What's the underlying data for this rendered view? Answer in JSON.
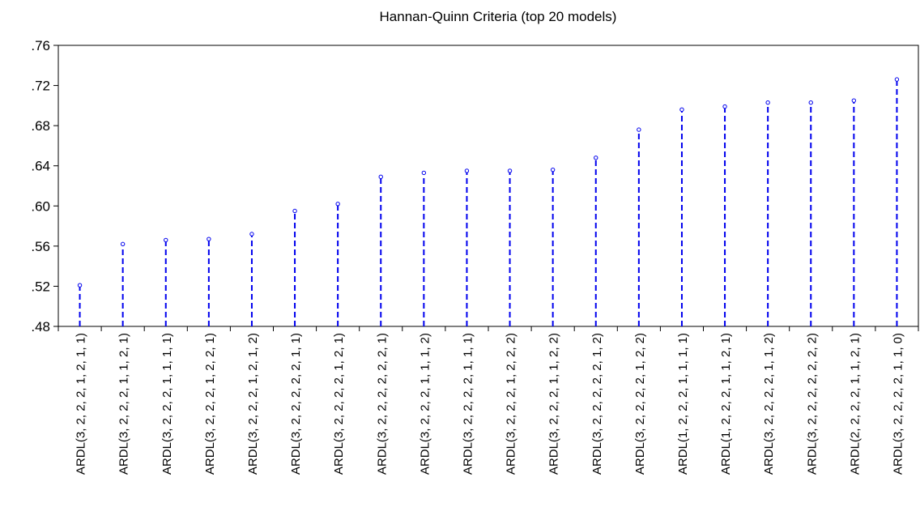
{
  "chart_data": {
    "type": "stem",
    "title": "Hannan-Quinn Criteria (top 20 models)",
    "categories": [
      "ARDL(3, 2, 2, 2, 1, 2, 1, 1)",
      "ARDL(3, 2, 2, 2, 1, 1, 2, 1)",
      "ARDL(3, 2, 2, 2, 1, 1, 1, 1)",
      "ARDL(3, 2, 2, 2, 1, 2, 2, 1)",
      "ARDL(3, 2, 2, 2, 1, 2, 1, 2)",
      "ARDL(3, 2, 2, 2, 2, 2, 1, 1)",
      "ARDL(3, 2, 2, 2, 2, 1, 2, 1)",
      "ARDL(3, 2, 2, 2, 2, 2, 2, 1)",
      "ARDL(3, 2, 2, 2, 1, 1, 1, 2)",
      "ARDL(3, 2, 2, 2, 2, 1, 1, 1)",
      "ARDL(3, 2, 2, 2, 1, 2, 2, 2)",
      "ARDL(3, 2, 2, 2, 1, 1, 2, 2)",
      "ARDL(3, 2, 2, 2, 2, 2, 1, 2)",
      "ARDL(3, 2, 2, 2, 2, 1, 2, 2)",
      "ARDL(1, 2, 2, 2, 1, 1, 1, 1)",
      "ARDL(1, 2, 2, 2, 1, 1, 2, 1)",
      "ARDL(3, 2, 2, 2, 2, 1, 1, 2)",
      "ARDL(3, 2, 2, 2, 2, 2, 2, 2)",
      "ARDL(2, 2, 2, 2, 1, 1, 2, 1)",
      "ARDL(3, 2, 2, 2, 2, 1, 1, 0)"
    ],
    "values": [
      0.521,
      0.562,
      0.566,
      0.567,
      0.572,
      0.595,
      0.602,
      0.629,
      0.633,
      0.635,
      0.635,
      0.636,
      0.648,
      0.676,
      0.696,
      0.699,
      0.703,
      0.703,
      0.705,
      0.726
    ],
    "color": "#0000ee",
    "ylim": [
      0.48,
      0.76
    ],
    "yticks": [
      {
        "value": 0.48,
        "label": ".48"
      },
      {
        "value": 0.52,
        "label": ".52"
      },
      {
        "value": 0.56,
        "label": ".56"
      },
      {
        "value": 0.6,
        "label": ".60"
      },
      {
        "value": 0.64,
        "label": ".64"
      },
      {
        "value": 0.68,
        "label": ".68"
      },
      {
        "value": 0.72,
        "label": ".72"
      },
      {
        "value": 0.76,
        "label": ".76"
      }
    ]
  }
}
